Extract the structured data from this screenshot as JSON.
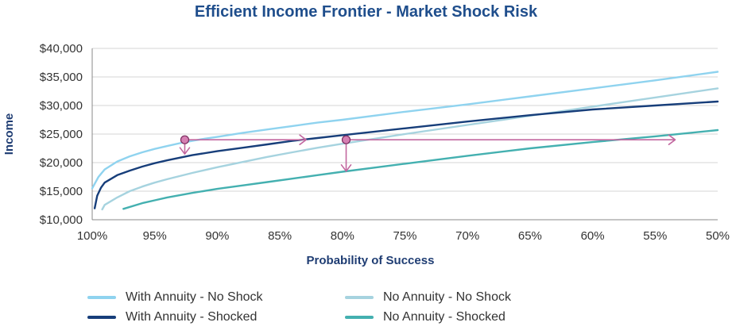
{
  "chart_data": {
    "type": "line",
    "title": "Efficient Income Frontier - Market Shock Risk",
    "xlabel": "Probability of Success",
    "ylabel": "Income",
    "x_reversed": true,
    "xlim": [
      100,
      50
    ],
    "ylim": [
      10000,
      40000
    ],
    "x_ticks": [
      100,
      95,
      90,
      85,
      80,
      75,
      70,
      65,
      60,
      55,
      50
    ],
    "x_tick_labels": [
      "100%",
      "95%",
      "90%",
      "85%",
      "80%",
      "75%",
      "70%",
      "65%",
      "60%",
      "55%",
      "50%"
    ],
    "y_ticks": [
      10000,
      15000,
      20000,
      25000,
      30000,
      35000,
      40000
    ],
    "y_tick_labels": [
      "$10,000",
      "$15,000",
      "$20,000",
      "$25,000",
      "$30,000",
      "$35,000",
      "$40,000"
    ],
    "grid": "horizontal",
    "legend_position": "bottom",
    "series": [
      {
        "name": "With Annuity - No Shock",
        "color": "#8fd3ef",
        "x": [
          100,
          99.5,
          99,
          98,
          97,
          96,
          95,
          94,
          93,
          92,
          91,
          90,
          88,
          86,
          84,
          82,
          80,
          75,
          70,
          65,
          60,
          55,
          50
        ],
        "y": [
          15500,
          17500,
          18800,
          20200,
          21100,
          21800,
          22400,
          22900,
          23400,
          23800,
          24200,
          24500,
          25200,
          25800,
          26400,
          27000,
          27500,
          28900,
          30200,
          31600,
          33000,
          34400,
          35900
        ]
      },
      {
        "name": "No Annuity - No Shock",
        "color": "#a6d3df",
        "x": [
          99.2,
          99,
          98,
          97,
          96,
          95,
          94,
          92,
          90,
          88,
          86,
          84,
          82,
          80,
          75,
          70,
          65,
          60,
          55,
          50
        ],
        "y": [
          11800,
          12600,
          13900,
          15000,
          15800,
          16500,
          17100,
          18200,
          19200,
          20100,
          21000,
          21800,
          22600,
          23300,
          25000,
          26600,
          28200,
          29800,
          31400,
          33000
        ]
      },
      {
        "name": "With Annuity - Shocked",
        "color": "#173e7a",
        "x": [
          99.8,
          99.6,
          99.3,
          99,
          98,
          97,
          96,
          95,
          94,
          92,
          90,
          88,
          86,
          84,
          82,
          80,
          75,
          70,
          65,
          60,
          55,
          50
        ],
        "y": [
          12000,
          14200,
          15600,
          16500,
          17800,
          18600,
          19300,
          19900,
          20400,
          21300,
          22000,
          22600,
          23200,
          23800,
          24300,
          24800,
          26000,
          27200,
          28300,
          29300,
          30000,
          30700
        ]
      },
      {
        "name": "No Annuity - Shocked",
        "color": "#44b0b0",
        "x": [
          97.5,
          96,
          95,
          94,
          92,
          90,
          88,
          86,
          84,
          82,
          80,
          75,
          70,
          65,
          60,
          55,
          50
        ],
        "y": [
          11900,
          12900,
          13400,
          13900,
          14700,
          15400,
          16000,
          16600,
          17200,
          17800,
          18400,
          19800,
          21200,
          22500,
          23600,
          24600,
          25700
        ]
      }
    ],
    "annotations": {
      "color": "#c2679f",
      "markers": [
        {
          "x": 92.6,
          "y": 24000
        },
        {
          "x": 79.7,
          "y": 24000
        }
      ],
      "arrows": [
        {
          "from": [
            92.6,
            24000
          ],
          "to": [
            82.9,
            24000
          ]
        },
        {
          "from": [
            79.7,
            24000
          ],
          "to": [
            53.4,
            24000
          ]
        },
        {
          "from": [
            92.6,
            24000
          ],
          "to": [
            92.6,
            21500
          ]
        },
        {
          "from": [
            79.7,
            24000
          ],
          "to": [
            79.7,
            18500
          ]
        }
      ]
    }
  }
}
